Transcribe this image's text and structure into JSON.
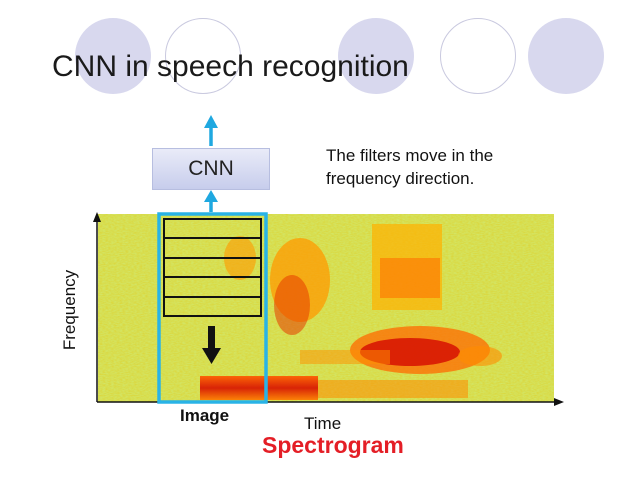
{
  "title": "CNN in speech recognition",
  "cnn_label": "CNN",
  "note_lines": [
    "The filters move in the",
    "frequency direction."
  ],
  "axis": {
    "y_label": "Frequency",
    "x_label": "Time"
  },
  "image_label": "Image",
  "spectrogram_label": "Spectrogram",
  "colors": {
    "title_text": "#1a1a1a",
    "decor_circle": "#d8d8ee",
    "arrow_blue": "#1fa8e0",
    "window_border": "#29b3e6",
    "spectrogram_label": "#e41e26",
    "filter_lines": "#111111"
  },
  "filter_stripes": 5
}
